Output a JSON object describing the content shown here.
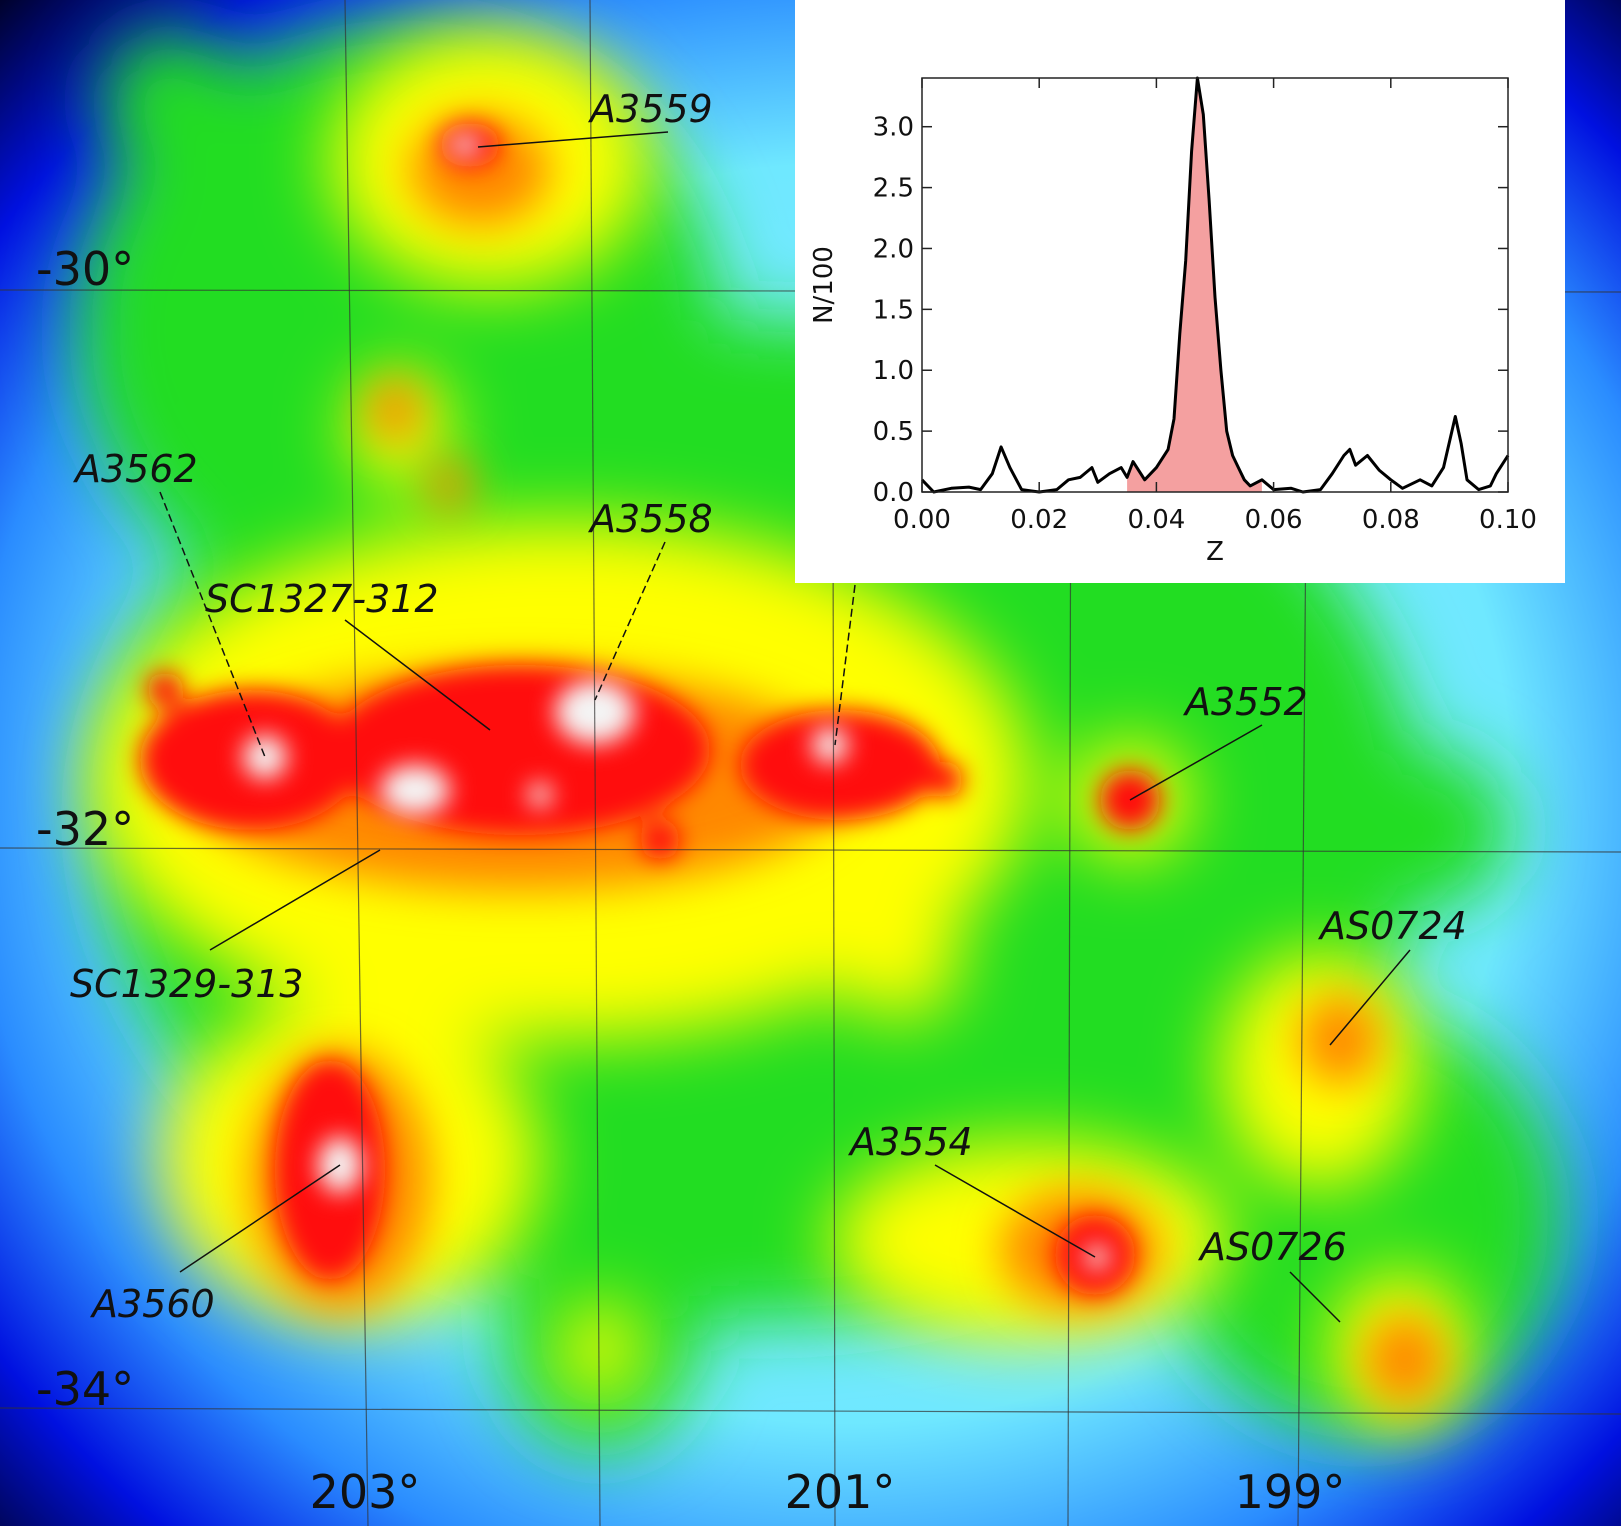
{
  "map": {
    "labels": [
      "A3559",
      "A3562",
      "SC1327-312",
      "A3558",
      "A3552",
      "AS0724",
      "A3554",
      "AS0726",
      "SC1329-313",
      "A3560"
    ],
    "ra_labels": [
      "203°",
      "201°",
      "199°"
    ],
    "dec_labels": [
      "-30°",
      "-32°",
      "-34°"
    ]
  },
  "chart_data": {
    "type": "line",
    "xlabel": "Z",
    "ylabel": "N/100",
    "color": "#000000",
    "highlight_color": "#f4a0a0",
    "highlight_xlim": [
      0.035,
      0.058
    ],
    "xlim": [
      0,
      0.1
    ],
    "ylim": [
      0,
      3.4
    ],
    "xticks": [
      {
        "value": 0,
        "label": "0.00"
      },
      {
        "value": 0.02,
        "label": "0.02"
      },
      {
        "value": 0.04,
        "label": "0.04"
      },
      {
        "value": 0.06,
        "label": "0.06"
      },
      {
        "value": 0.08,
        "label": "0.08"
      },
      {
        "value": 0.1,
        "label": "0.10"
      }
    ],
    "yticks": [
      {
        "value": 0,
        "label": "0.0"
      },
      {
        "value": 0.5,
        "label": "0.5"
      },
      {
        "value": 1,
        "label": "1.0"
      },
      {
        "value": 1.5,
        "label": "1.5"
      },
      {
        "value": 2,
        "label": "2.0"
      },
      {
        "value": 2.5,
        "label": "2.5"
      },
      {
        "value": 3,
        "label": "3.0"
      }
    ],
    "x": [
      0.0,
      0.002,
      0.005,
      0.008,
      0.01,
      0.012,
      0.0135,
      0.015,
      0.017,
      0.02,
      0.023,
      0.025,
      0.027,
      0.029,
      0.03,
      0.032,
      0.034,
      0.035,
      0.036,
      0.038,
      0.04,
      0.042,
      0.043,
      0.044,
      0.045,
      0.046,
      0.047,
      0.048,
      0.049,
      0.05,
      0.051,
      0.052,
      0.053,
      0.054,
      0.055,
      0.056,
      0.058,
      0.06,
      0.063,
      0.065,
      0.068,
      0.07,
      0.072,
      0.073,
      0.074,
      0.076,
      0.078,
      0.08,
      0.082,
      0.085,
      0.087,
      0.089,
      0.091,
      0.092,
      0.093,
      0.095,
      0.097,
      0.098,
      0.1
    ],
    "y": [
      0.1,
      0.0,
      0.03,
      0.04,
      0.02,
      0.15,
      0.37,
      0.2,
      0.02,
      0.0,
      0.02,
      0.1,
      0.12,
      0.2,
      0.08,
      0.15,
      0.2,
      0.12,
      0.25,
      0.1,
      0.2,
      0.35,
      0.6,
      1.3,
      1.9,
      2.8,
      3.4,
      3.1,
      2.4,
      1.6,
      1.0,
      0.5,
      0.3,
      0.2,
      0.1,
      0.05,
      0.1,
      0.02,
      0.03,
      0.0,
      0.02,
      0.15,
      0.3,
      0.35,
      0.22,
      0.3,
      0.18,
      0.1,
      0.03,
      0.1,
      0.05,
      0.2,
      0.62,
      0.4,
      0.1,
      0.02,
      0.05,
      0.15,
      0.3
    ]
  }
}
